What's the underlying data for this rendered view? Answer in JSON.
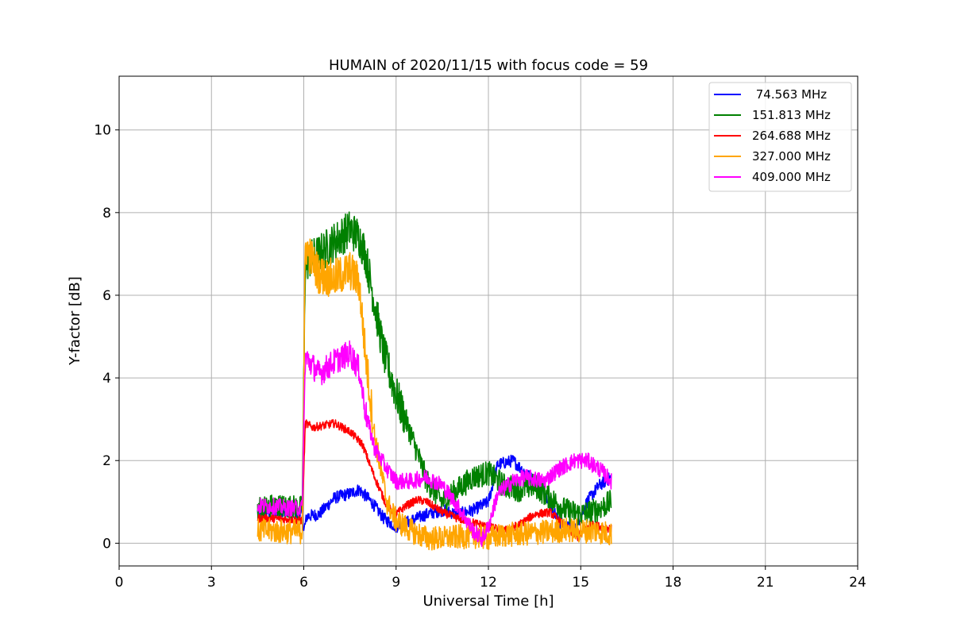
{
  "chart_data": {
    "type": "line",
    "title": "HUMAIN of 2020/11/15 with focus code = 59",
    "xlabel": "Universal Time [h]",
    "ylabel": "Y-factor [dB]",
    "xlim": [
      0,
      24
    ],
    "ylim": [
      -0.55,
      11.3
    ],
    "xticks": [
      0,
      3,
      6,
      9,
      12,
      15,
      18,
      21,
      24
    ],
    "yticks": [
      0,
      2,
      4,
      6,
      8,
      10
    ],
    "grid": true,
    "legend_position": "top-right",
    "series": [
      {
        "name": " 74.563 MHz",
        "color": "#0000ff",
        "x": [
          4.5,
          5.0,
          5.5,
          5.95,
          6.0,
          6.1,
          6.5,
          7.0,
          7.5,
          7.8,
          8.2,
          8.6,
          9.0,
          9.5,
          10.0,
          10.5,
          11.0,
          11.5,
          12.0,
          12.3,
          12.8,
          13.2,
          13.8,
          14.3,
          14.8,
          15.2,
          15.6,
          16.0
        ],
        "y": [
          0.75,
          0.75,
          0.72,
          0.7,
          0.3,
          0.65,
          0.7,
          1.1,
          1.2,
          1.3,
          1.0,
          0.6,
          0.4,
          0.55,
          0.7,
          0.8,
          0.7,
          0.8,
          1.0,
          1.9,
          2.0,
          1.7,
          1.3,
          0.5,
          0.3,
          1.0,
          1.4,
          1.6
        ],
        "noise": 0.15
      },
      {
        "name": "151.813 MHz",
        "color": "#008000",
        "x": [
          4.5,
          5.0,
          5.5,
          5.95,
          6.05,
          6.5,
          7.0,
          7.5,
          7.8,
          8.0,
          8.3,
          8.6,
          9.0,
          9.5,
          10.0,
          10.5,
          11.0,
          11.5,
          12.0,
          12.5,
          13.0,
          13.5,
          14.0,
          14.5,
          15.0,
          15.5,
          16.0
        ],
        "y": [
          0.85,
          0.9,
          0.88,
          0.85,
          6.8,
          7.0,
          7.3,
          7.6,
          7.4,
          7.0,
          5.8,
          4.6,
          3.6,
          2.6,
          1.5,
          1.0,
          1.3,
          1.6,
          1.7,
          1.4,
          1.3,
          1.4,
          1.1,
          0.8,
          0.7,
          0.8,
          1.0
        ],
        "noise": 0.3
      },
      {
        "name": "264.688 MHz",
        "color": "#ff0000",
        "x": [
          4.5,
          5.0,
          5.5,
          5.95,
          6.05,
          6.3,
          7.0,
          7.5,
          7.9,
          8.3,
          8.7,
          9.0,
          9.3,
          9.7,
          10.0,
          10.5,
          11.0,
          11.5,
          12.0,
          12.5,
          13.0,
          13.5,
          14.0,
          14.5,
          14.9,
          15.3,
          16.0
        ],
        "y": [
          0.6,
          0.6,
          0.58,
          0.55,
          2.9,
          2.8,
          2.9,
          2.7,
          2.4,
          1.6,
          0.9,
          0.7,
          0.9,
          1.05,
          1.0,
          0.75,
          0.6,
          0.5,
          0.4,
          0.3,
          0.45,
          0.7,
          0.75,
          0.4,
          0.15,
          0.45,
          0.35
        ],
        "noise": 0.1
      },
      {
        "name": "327.000 MHz",
        "color": "#ffa500",
        "x": [
          4.5,
          5.0,
          5.5,
          5.95,
          6.05,
          6.5,
          7.0,
          7.5,
          7.8,
          8.0,
          8.3,
          8.7,
          9.0,
          9.5,
          10.0,
          10.5,
          11.0,
          11.5,
          12.0,
          12.5,
          13.0,
          13.5,
          14.0,
          14.5,
          15.0,
          15.5,
          16.0
        ],
        "y": [
          0.3,
          0.3,
          0.28,
          0.28,
          7.2,
          6.5,
          6.4,
          6.6,
          6.3,
          4.6,
          2.6,
          1.0,
          0.55,
          0.3,
          0.12,
          0.12,
          0.15,
          0.18,
          0.12,
          0.2,
          0.22,
          0.25,
          0.28,
          0.32,
          0.3,
          0.3,
          0.22
        ],
        "noise": 0.3
      },
      {
        "name": "409.000 MHz",
        "color": "#ff00ff",
        "x": [
          4.5,
          5.0,
          5.5,
          5.95,
          6.05,
          6.5,
          7.0,
          7.5,
          7.8,
          8.0,
          8.3,
          8.7,
          9.0,
          9.5,
          10.0,
          10.5,
          11.0,
          11.5,
          11.8,
          12.0,
          12.3,
          12.8,
          13.2,
          13.8,
          14.3,
          14.8,
          15.2,
          15.6,
          16.0
        ],
        "y": [
          0.9,
          0.9,
          0.85,
          0.85,
          4.5,
          4.1,
          4.4,
          4.6,
          4.2,
          3.2,
          2.3,
          1.8,
          1.5,
          1.5,
          1.6,
          1.4,
          0.9,
          0.3,
          0.1,
          0.4,
          1.2,
          1.5,
          1.6,
          1.5,
          1.8,
          2.0,
          2.0,
          1.8,
          1.5
        ],
        "noise": 0.2
      }
    ]
  }
}
